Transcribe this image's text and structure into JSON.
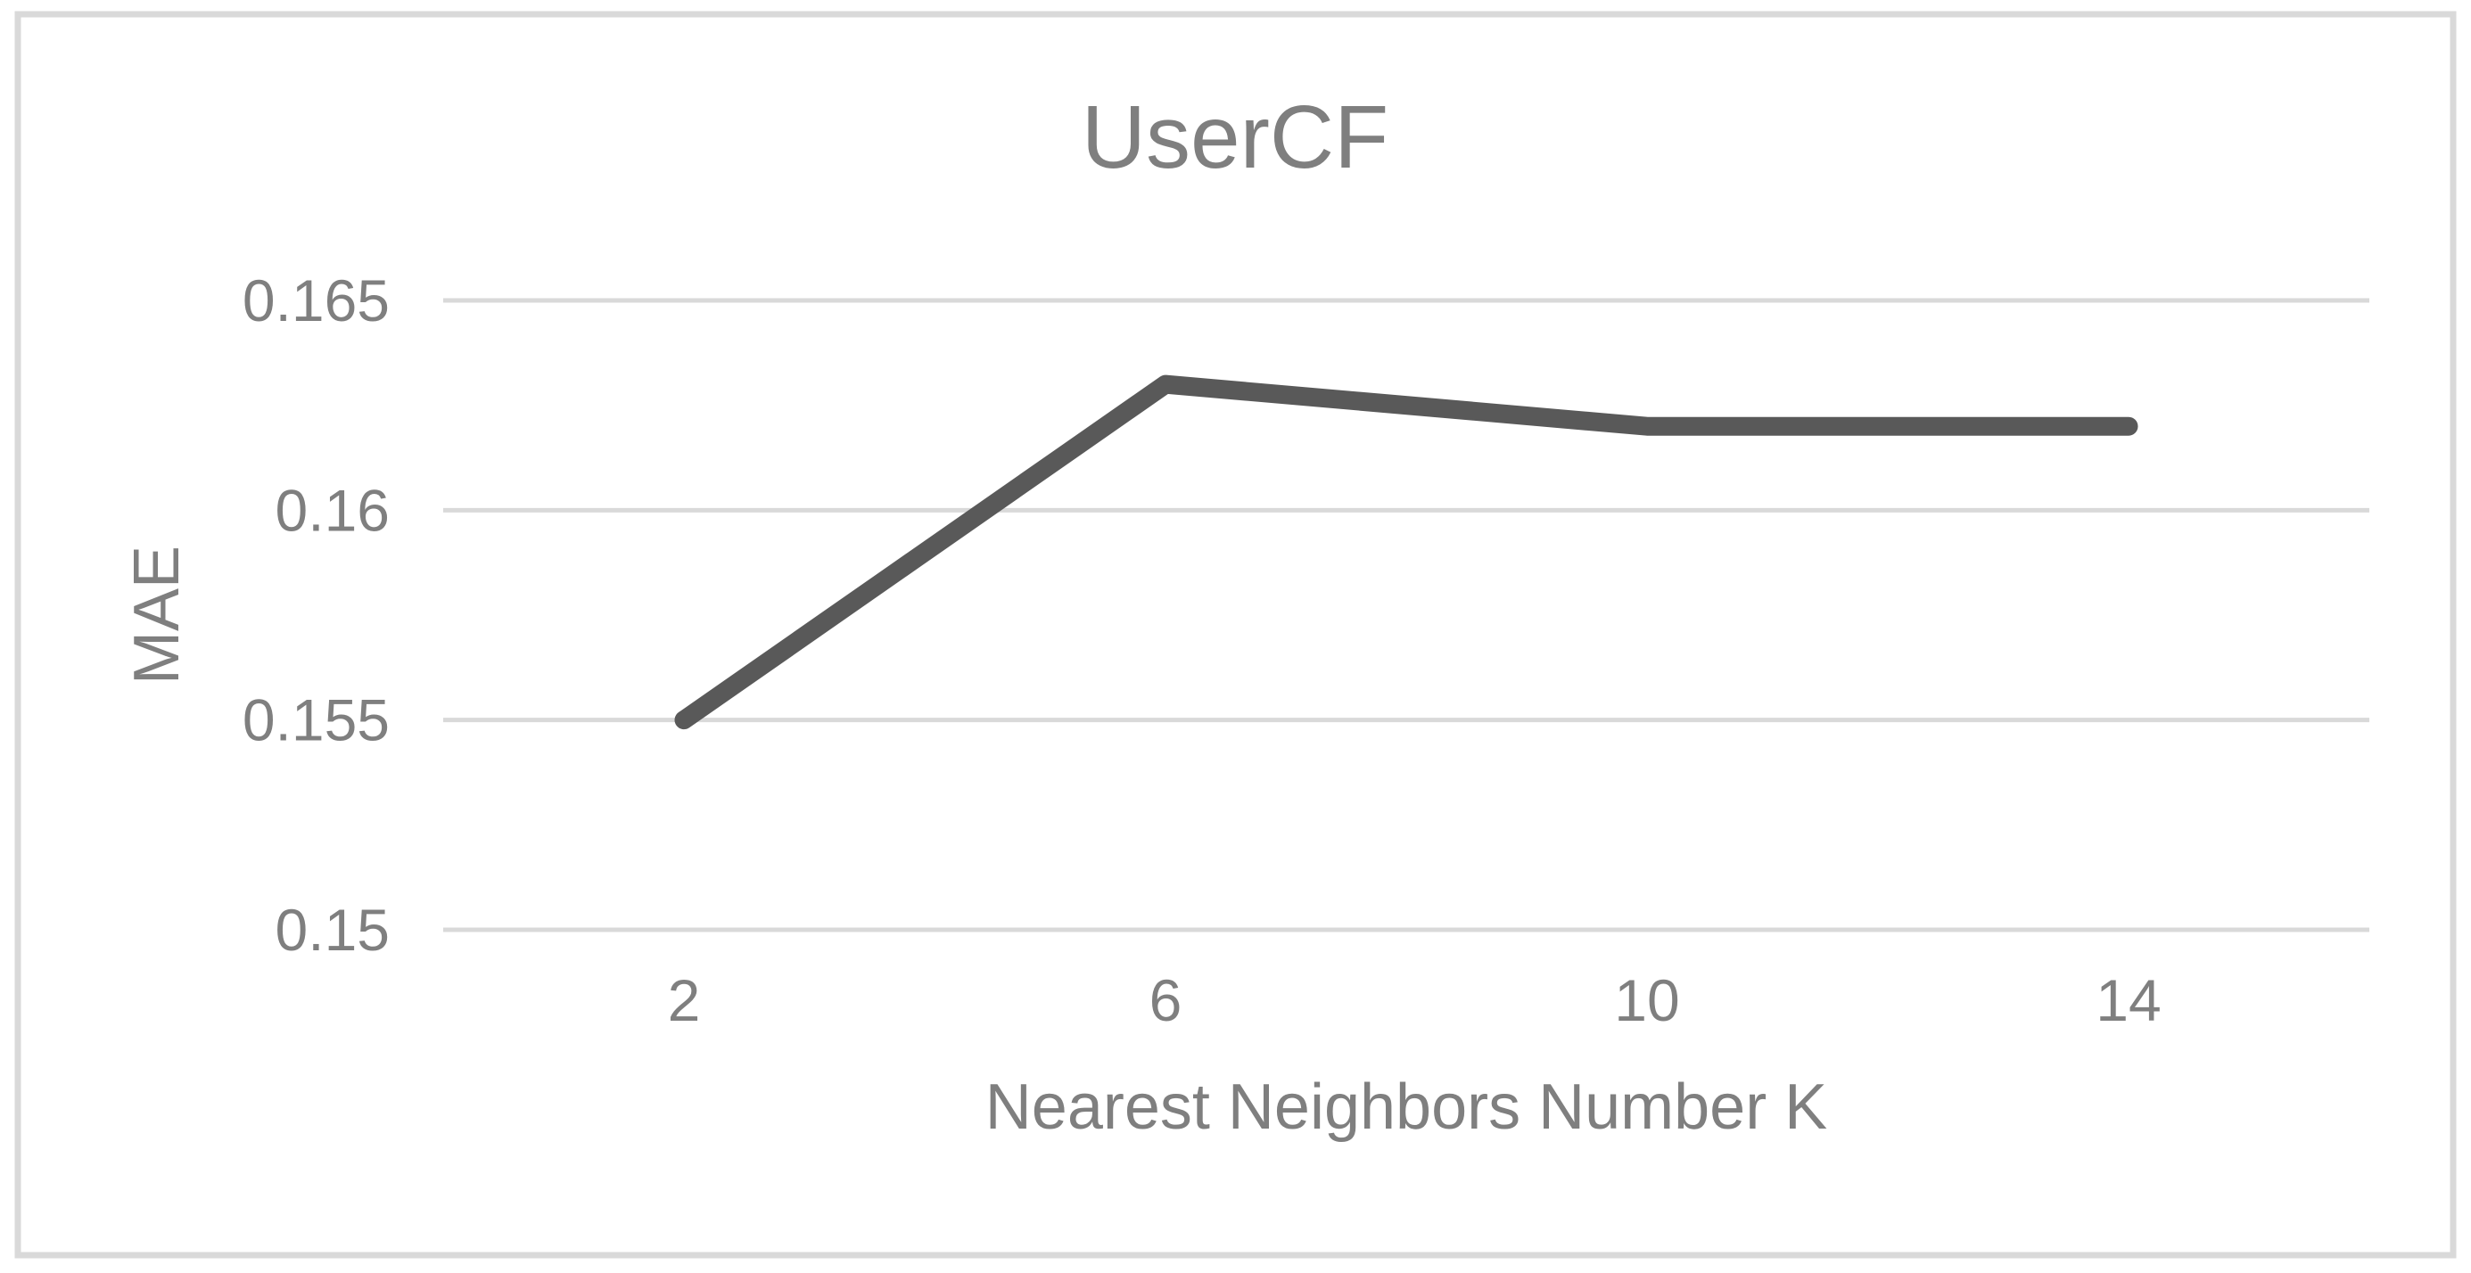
{
  "chart_data": {
    "type": "line",
    "title": "UserCF",
    "xlabel": "Nearest Neighbors Number K",
    "ylabel": "MAE",
    "categories": [
      "2",
      "6",
      "10",
      "14"
    ],
    "series": [
      {
        "name": "MAE",
        "values": [
          0.155,
          0.163,
          0.162,
          0.162
        ]
      }
    ],
    "ylim": [
      0.15,
      0.165
    ],
    "yticks": [
      0.165,
      0.16,
      0.155,
      0.15
    ],
    "ytick_labels": [
      "0.165",
      "0.16",
      "0.155",
      "0.15"
    ],
    "xtick_labels": [
      "2",
      "6",
      "10",
      "14"
    ],
    "grid": "horizontal",
    "legend": "none"
  },
  "colors": {
    "background": "#ffffff",
    "frame_border": "#d9d9d9",
    "gridline": "#d9d9d9",
    "text": "#7f7f7f",
    "series_line": "#595959"
  }
}
